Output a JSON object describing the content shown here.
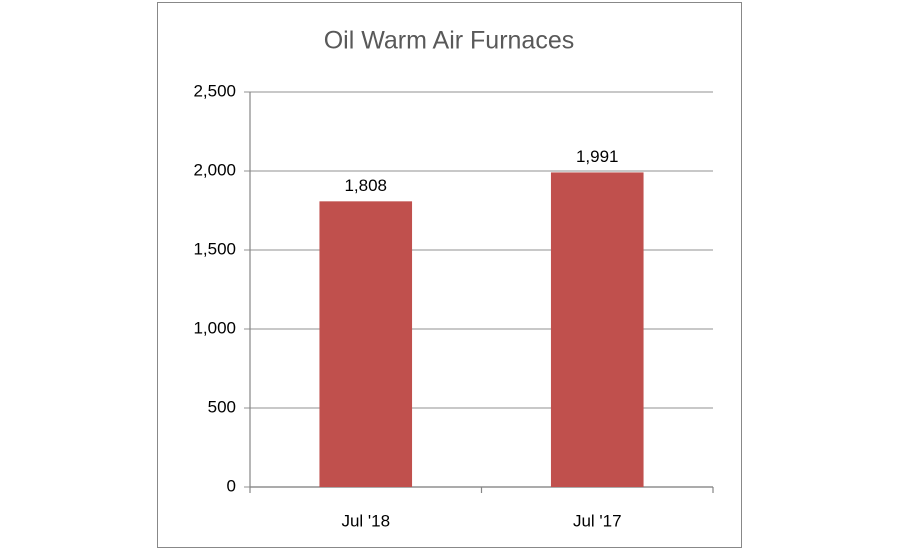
{
  "chart_data": {
    "type": "bar",
    "title": "Oil Warm Air Furnaces",
    "categories": [
      "Jul '18",
      "Jul '17"
    ],
    "values": [
      1808,
      1991
    ],
    "value_labels": [
      "1,808",
      "1,991"
    ],
    "color": "#c0504d",
    "ylim": [
      0,
      2500
    ],
    "yticks": [
      0,
      500,
      {
        "value": 1000,
        "label": "1,000"
      },
      {
        "value": 1500,
        "label": "1,500"
      },
      {
        "value": 2000,
        "label": "2,000"
      },
      {
        "value": 2500,
        "label": "2,500"
      }
    ],
    "grid": true
  }
}
